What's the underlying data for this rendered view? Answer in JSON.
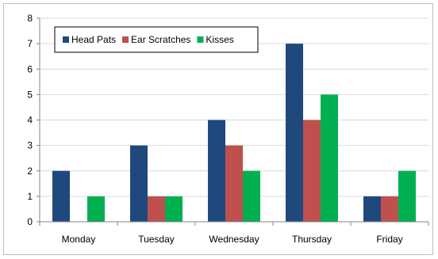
{
  "chart_data": {
    "type": "bar",
    "title": "",
    "xlabel": "",
    "ylabel": "",
    "categories": [
      "Monday",
      "Tuesday",
      "Wednesday",
      "Thursday",
      "Friday"
    ],
    "series": [
      {
        "name": "Head Pats",
        "color": "#1f497d",
        "values": [
          2,
          3,
          4,
          7,
          1
        ]
      },
      {
        "name": "Ear Scratches",
        "color": "#c0504d",
        "values": [
          0,
          1,
          3,
          4,
          1
        ]
      },
      {
        "name": "Kisses",
        "color": "#00b050",
        "values": [
          1,
          1,
          2,
          5,
          2
        ]
      }
    ],
    "ylim": [
      0,
      8
    ],
    "yticks": [
      "0",
      "1",
      "2",
      "3",
      "4",
      "5",
      "6",
      "7",
      "8"
    ],
    "grid": "horizontal",
    "legend_position": "top-left"
  }
}
